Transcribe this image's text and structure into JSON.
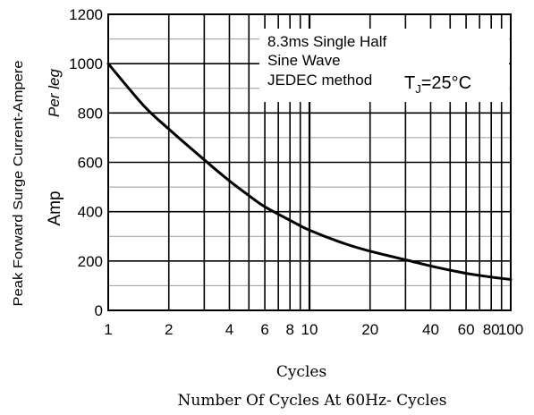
{
  "chart_data": {
    "type": "line",
    "title": "",
    "xlabel": "Cycles",
    "xlabel_sub": "Number Of Cycles At 60Hz- Cycles",
    "ylabel": "Peak Forward Surge Current-Ampere",
    "ylabel_sub": "Per leg",
    "ylabel_unit": "Amp",
    "x_scale": "log",
    "xlim": [
      1,
      100
    ],
    "ylim": [
      0,
      1200
    ],
    "grid": true,
    "x_tick_values": [
      1,
      2,
      4,
      6,
      8,
      10,
      20,
      40,
      60,
      80,
      100
    ],
    "x_tick_labels": [
      "1",
      "2",
      "4",
      "6",
      "8",
      "10",
      "20",
      "40",
      "60",
      "80",
      "100"
    ],
    "y_tick_values": [
      0,
      200,
      400,
      600,
      800,
      1000,
      1200
    ],
    "y_tick_labels": [
      "0",
      "200",
      "400",
      "600",
      "800",
      "1000",
      "1200"
    ],
    "annotation": {
      "line1": "8.3ms Single Half",
      "line2": "Sine Wave",
      "line3": "JEDEC method",
      "tj_symbol": "T",
      "tj_subscript": "J",
      "tj_value": "=25°C"
    },
    "series": [
      {
        "x": [
          1,
          1.5,
          2,
          3,
          4,
          5,
          6,
          8,
          10,
          15,
          20,
          30,
          40,
          60,
          80,
          100
        ],
        "y": [
          1000,
          830,
          735,
          610,
          525,
          465,
          420,
          365,
          325,
          270,
          240,
          205,
          180,
          150,
          135,
          125
        ]
      }
    ]
  }
}
